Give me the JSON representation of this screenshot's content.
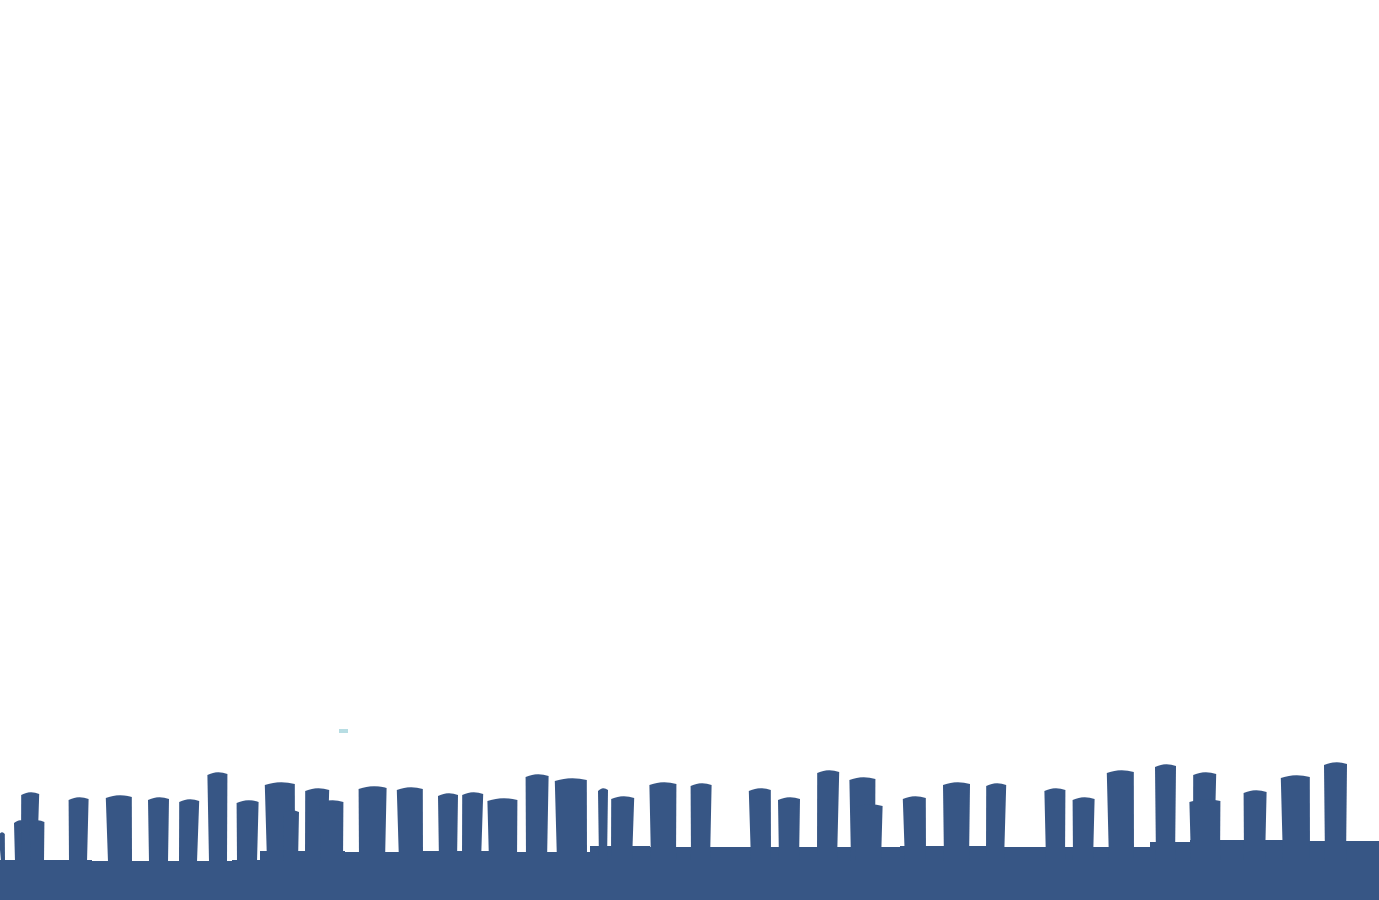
{
  "game": {
    "palette": {
      "background": "#ffffff",
      "ground": "#375685",
      "particle": "#b7dde3"
    }
  }
}
